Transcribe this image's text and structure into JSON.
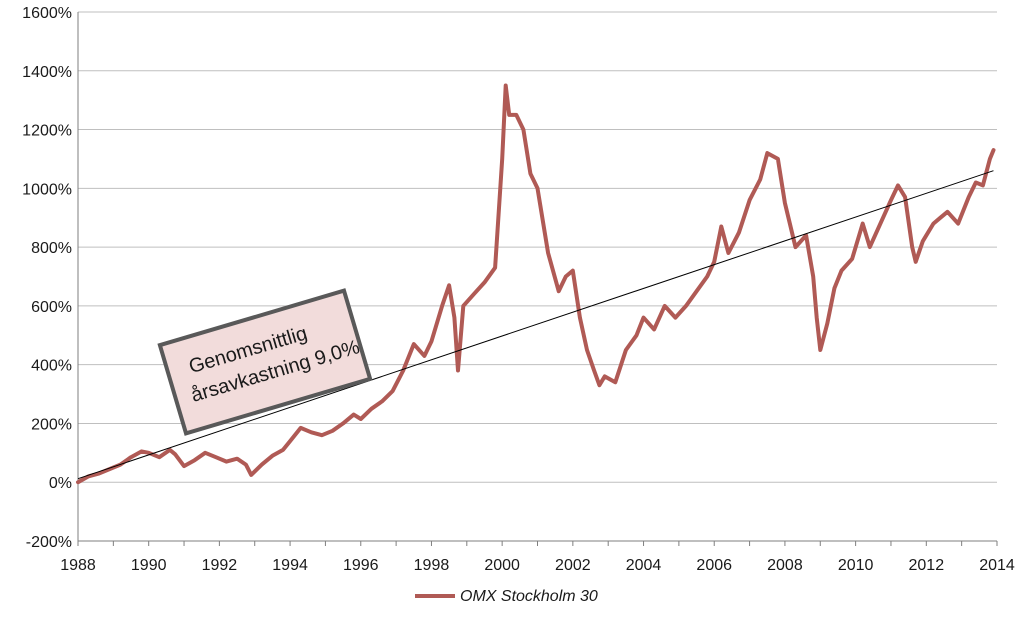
{
  "chart_data": {
    "type": "line",
    "title": "",
    "xlabel": "",
    "ylabel": "",
    "xlim": [
      1988,
      2014
    ],
    "ylim": [
      -200,
      1600
    ],
    "x_ticks": [
      1988,
      1990,
      1992,
      1994,
      1996,
      1998,
      2000,
      2002,
      2004,
      2006,
      2008,
      2010,
      2012,
      2014
    ],
    "x_tick_labels": [
      "1988",
      "1990",
      "1992",
      "1994",
      "1996",
      "1998",
      "2000",
      "2002",
      "2004",
      "2006",
      "2008",
      "2010",
      "2012",
      "2014"
    ],
    "y_ticks": [
      -200,
      0,
      200,
      400,
      600,
      800,
      1000,
      1200,
      1400,
      1600
    ],
    "y_tick_labels": [
      "-200%",
      "0%",
      "200%",
      "400%",
      "600%",
      "800%",
      "1000%",
      "1200%",
      "1400%",
      "1600%"
    ],
    "grid": "horizontal",
    "legend_position": "bottom",
    "colors": {
      "series": "#b05a55",
      "trend": "#000000",
      "grid": "#bfbfbf",
      "annotation_fill": "#f2dcdb",
      "annotation_border": "#595959"
    },
    "series": [
      {
        "name": "OMX Stockholm 30",
        "x": [
          1988.0,
          1988.3,
          1988.6,
          1988.9,
          1989.2,
          1989.5,
          1989.8,
          1990.0,
          1990.3,
          1990.6,
          1990.75,
          1991.0,
          1991.3,
          1991.6,
          1991.9,
          1992.2,
          1992.5,
          1992.75,
          1992.9,
          1993.2,
          1993.5,
          1993.8,
          1994.0,
          1994.3,
          1994.6,
          1994.9,
          1995.2,
          1995.5,
          1995.8,
          1996.0,
          1996.3,
          1996.6,
          1996.9,
          1997.2,
          1997.5,
          1997.8,
          1998.0,
          1998.3,
          1998.5,
          1998.65,
          1998.75,
          1998.9,
          1999.2,
          1999.5,
          1999.8,
          2000.0,
          2000.1,
          2000.2,
          2000.4,
          2000.6,
          2000.8,
          2001.0,
          2001.3,
          2001.6,
          2001.8,
          2002.0,
          2002.2,
          2002.4,
          2002.6,
          2002.75,
          2002.9,
          2003.2,
          2003.5,
          2003.8,
          2004.0,
          2004.3,
          2004.6,
          2004.9,
          2005.2,
          2005.5,
          2005.8,
          2006.0,
          2006.2,
          2006.4,
          2006.7,
          2007.0,
          2007.3,
          2007.5,
          2007.8,
          2008.0,
          2008.3,
          2008.6,
          2008.8,
          2008.9,
          2009.0,
          2009.2,
          2009.4,
          2009.6,
          2009.9,
          2010.2,
          2010.4,
          2010.7,
          2011.0,
          2011.2,
          2011.4,
          2011.6,
          2011.7,
          2011.9,
          2012.2,
          2012.4,
          2012.6,
          2012.9,
          2013.2,
          2013.4,
          2013.6,
          2013.8,
          2013.9
        ],
        "values": [
          0,
          20,
          30,
          45,
          60,
          85,
          105,
          100,
          85,
          110,
          95,
          55,
          75,
          100,
          85,
          70,
          80,
          60,
          25,
          60,
          90,
          110,
          140,
          185,
          170,
          160,
          175,
          200,
          230,
          215,
          250,
          275,
          310,
          380,
          470,
          430,
          480,
          600,
          670,
          560,
          380,
          600,
          640,
          680,
          730,
          1100,
          1350,
          1250,
          1250,
          1200,
          1050,
          1000,
          780,
          650,
          700,
          720,
          560,
          450,
          380,
          330,
          360,
          340,
          450,
          500,
          560,
          520,
          600,
          560,
          600,
          650,
          700,
          750,
          870,
          780,
          850,
          960,
          1030,
          1120,
          1100,
          950,
          800,
          840,
          700,
          560,
          450,
          540,
          660,
          720,
          760,
          880,
          800,
          880,
          960,
          1010,
          970,
          800,
          750,
          820,
          880,
          900,
          920,
          880,
          970,
          1020,
          1010,
          1100,
          1130
        ]
      },
      {
        "name": "",
        "x": [
          1988.0,
          2013.9
        ],
        "values": [
          12,
          1060
        ]
      }
    ],
    "annotations": [
      {
        "text_lines": [
          "Genomsnittlig",
          "årsavkastning 9,0%"
        ]
      }
    ]
  }
}
